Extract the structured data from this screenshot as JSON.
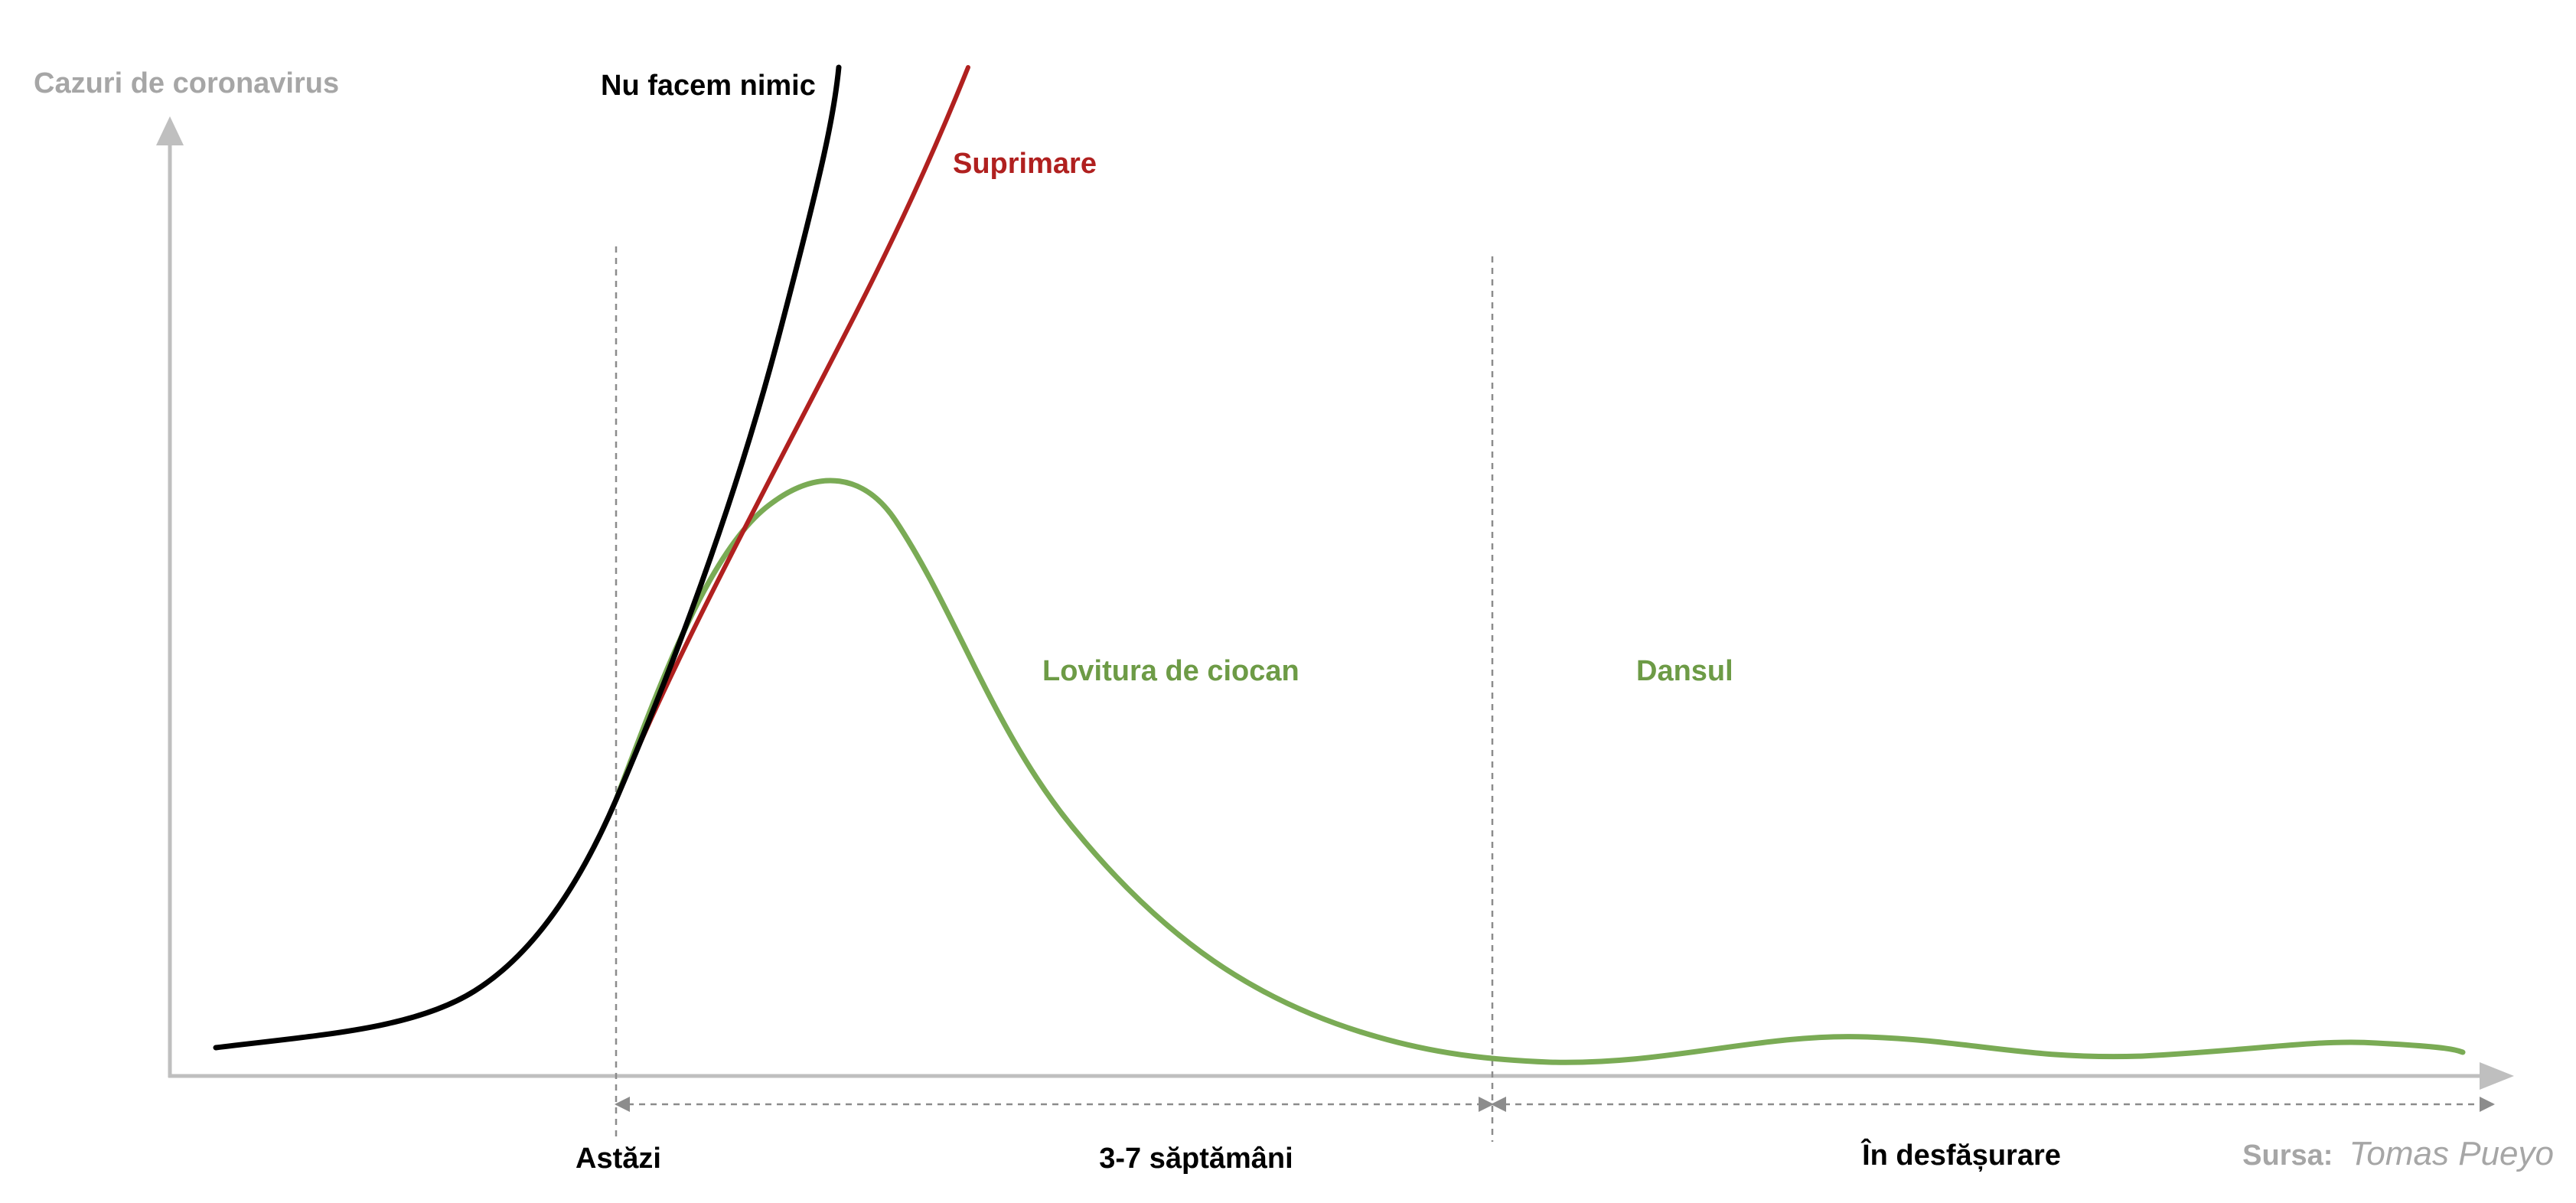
{
  "chart_data": {
    "type": "line",
    "ylabel": "Cazuri de coronavirus",
    "xlabel": "",
    "series": [
      {
        "name": "Nu facem nimic",
        "color": "#000000"
      },
      {
        "name": "Suprimare",
        "color": "#b0201f"
      },
      {
        "name": "Lovitura de ciocan",
        "color": "#7aab55"
      }
    ],
    "regions": [
      {
        "name": "Lovitura de ciocan",
        "color": "#6d9b46"
      },
      {
        "name": "Dansul",
        "color": "#6d9b46"
      }
    ],
    "periods": [
      {
        "label": "Astăzi"
      },
      {
        "label": "3-7 săptămâni"
      },
      {
        "label": "În desfășurare"
      }
    ],
    "colors": {
      "axis": "#bfbfbf",
      "axis_label": "#a6a6a6",
      "guide": "#8c8c8c",
      "source": "#a6a6a6"
    },
    "source": {
      "prefix": "Sursa:",
      "author": "Tomas Pueyo"
    }
  }
}
